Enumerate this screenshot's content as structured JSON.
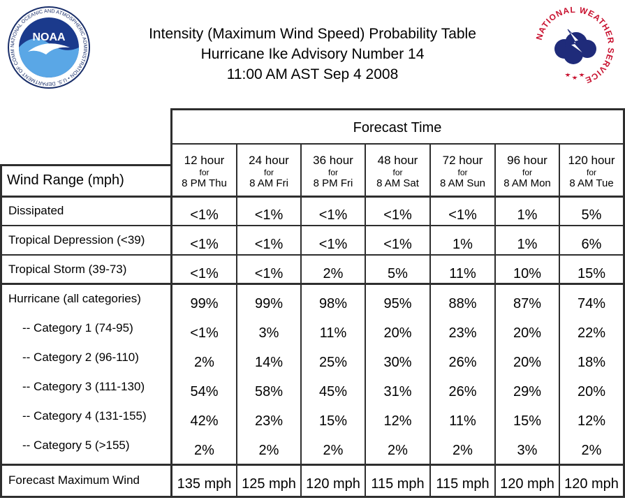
{
  "title": {
    "line1": "Intensity (Maximum Wind Speed) Probability Table",
    "line2": "Hurricane Ike Advisory Number 14",
    "line3": "11:00 AM AST Sep 4 2008"
  },
  "logos": {
    "noaa": {
      "icon": "noaa-logo",
      "text": "NOAA",
      "ring_text": "NATIONAL OCEANIC AND ATMOSPHERIC ADMINISTRATION • U.S. DEPARTMENT OF COMMERCE"
    },
    "nws": {
      "icon": "national-weather-service-logo",
      "ring_text": "NATIONAL WEATHER SERVICE"
    }
  },
  "table": {
    "forecast_time_label": "Forecast Time",
    "wind_range_label": "Wind Range (mph)",
    "columns": [
      {
        "hour": "12 hour",
        "for": "for",
        "time": "8 PM Thu"
      },
      {
        "hour": "24 hour",
        "for": "for",
        "time": "8 AM Fri"
      },
      {
        "hour": "36 hour",
        "for": "for",
        "time": "8 PM Fri"
      },
      {
        "hour": "48 hour",
        "for": "for",
        "time": "8 AM Sat"
      },
      {
        "hour": "72 hour",
        "for": "for",
        "time": "8 AM Sun"
      },
      {
        "hour": "96 hour",
        "for": "for",
        "time": "8 AM Mon"
      },
      {
        "hour": "120 hour",
        "for": "for",
        "time": "8 AM Tue"
      }
    ],
    "rows": [
      {
        "label": "Dissipated",
        "values": [
          "<1%",
          "<1%",
          "<1%",
          "<1%",
          "<1%",
          "1%",
          "5%"
        ]
      },
      {
        "label": "Tropical Depression (<39)",
        "values": [
          "<1%",
          "<1%",
          "<1%",
          "<1%",
          "1%",
          "1%",
          "6%"
        ]
      },
      {
        "label": "Tropical Storm (39-73)",
        "values": [
          "<1%",
          "<1%",
          "2%",
          "5%",
          "11%",
          "10%",
          "15%"
        ]
      },
      {
        "label": "Hurricane (all categories)",
        "values": [
          "99%",
          "99%",
          "98%",
          "95%",
          "88%",
          "87%",
          "74%"
        ]
      },
      {
        "label": "-- Category 1 (74-95)",
        "values": [
          "<1%",
          "3%",
          "11%",
          "20%",
          "23%",
          "20%",
          "22%"
        ]
      },
      {
        "label": "-- Category 2 (96-110)",
        "values": [
          "2%",
          "14%",
          "25%",
          "30%",
          "26%",
          "20%",
          "18%"
        ]
      },
      {
        "label": "-- Category 3 (111-130)",
        "values": [
          "54%",
          "58%",
          "45%",
          "31%",
          "26%",
          "29%",
          "20%"
        ]
      },
      {
        "label": "-- Category 4 (131-155)",
        "values": [
          "42%",
          "23%",
          "15%",
          "12%",
          "11%",
          "15%",
          "12%"
        ]
      },
      {
        "label": "-- Category 5 (>155)",
        "values": [
          "2%",
          "2%",
          "2%",
          "2%",
          "2%",
          "3%",
          "2%"
        ]
      }
    ],
    "max_wind": {
      "label": "Forecast Maximum Wind",
      "values": [
        "135 mph",
        "125 mph",
        "120 mph",
        "115 mph",
        "115 mph",
        "120 mph",
        "120 mph"
      ]
    }
  }
}
